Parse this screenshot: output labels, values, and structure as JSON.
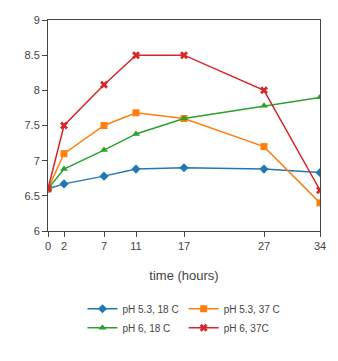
{
  "chart_data": {
    "type": "line",
    "xlabel": "time (hours)",
    "x": [
      0,
      2,
      7,
      11,
      17,
      27,
      34
    ],
    "series": [
      {
        "name": "pH 5.3, 18 C",
        "values": [
          6.6,
          6.67,
          6.78,
          6.88,
          6.9,
          6.88,
          6.83
        ],
        "marker": "diamond",
        "line_style": "solid"
      },
      {
        "name": "pH 5.3, 37 C",
        "values": [
          6.6,
          7.1,
          7.5,
          7.68,
          7.6,
          7.2,
          6.4
        ],
        "marker": "square",
        "line_style": "solid"
      },
      {
        "name": "pH 6, 18 C",
        "values": [
          6.6,
          6.88,
          7.15,
          7.38,
          7.6,
          7.78,
          7.9
        ],
        "marker": "triangle-up",
        "line_style": "solid"
      },
      {
        "name": "pH 6, 37C",
        "values": [
          6.6,
          7.5,
          8.08,
          8.5,
          8.5,
          8.0,
          6.58
        ],
        "marker": "x",
        "line_style": "solid"
      }
    ],
    "xlim": [
      0,
      34
    ],
    "xticks": [
      0,
      2,
      7,
      11,
      17,
      27,
      34
    ],
    "ylim": [
      6,
      9
    ],
    "yticks": [
      6,
      6.5,
      7,
      7.5,
      8,
      8.5,
      9
    ],
    "grid": false,
    "legend": "bottom"
  }
}
